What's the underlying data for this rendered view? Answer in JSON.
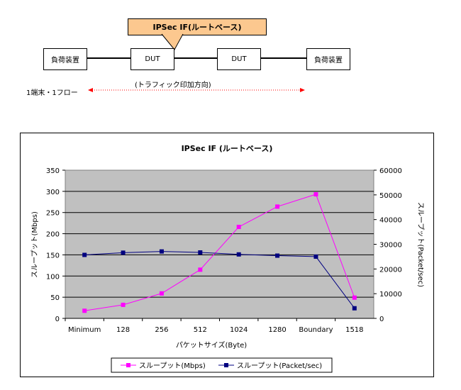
{
  "diagram": {
    "callout": "IPSec IF(ルートベース)",
    "load_left": "負荷装置",
    "dut_left": "DUT",
    "dut_right": "DUT",
    "load_right": "負荷装置",
    "traffic_label": "(トラフィック印加方向)",
    "flow_label": "1端末・1フロー"
  },
  "chart_data": {
    "type": "line",
    "title": "IPSec IF (ルートベース)",
    "xlabel": "パケットサイズ(Byte)",
    "ylabel": "スループット(Mbps)",
    "y2label": "スループット(Packet/sec)",
    "categories": [
      "Minimum",
      "128",
      "256",
      "512",
      "1024",
      "1280",
      "Boundary",
      "1518"
    ],
    "ylim": [
      0,
      350
    ],
    "yticks": [
      "0",
      "50",
      "100",
      "150",
      "200",
      "250",
      "300",
      "350"
    ],
    "y2lim": [
      0,
      60000
    ],
    "y2ticks": [
      "0",
      "10000",
      "20000",
      "30000",
      "40000",
      "50000",
      "60000"
    ],
    "grid": true,
    "legend_position": "bottom",
    "series": [
      {
        "name": "スループット(Mbps)",
        "axis": "left",
        "color": "#ff00ff",
        "values": [
          18,
          32,
          59,
          115,
          216,
          264,
          293,
          49
        ]
      },
      {
        "name": "スループット(Packet/sec)",
        "axis": "right",
        "color": "#000080",
        "values": [
          25700,
          26600,
          27100,
          26700,
          25900,
          25400,
          25000,
          4100
        ]
      }
    ]
  }
}
